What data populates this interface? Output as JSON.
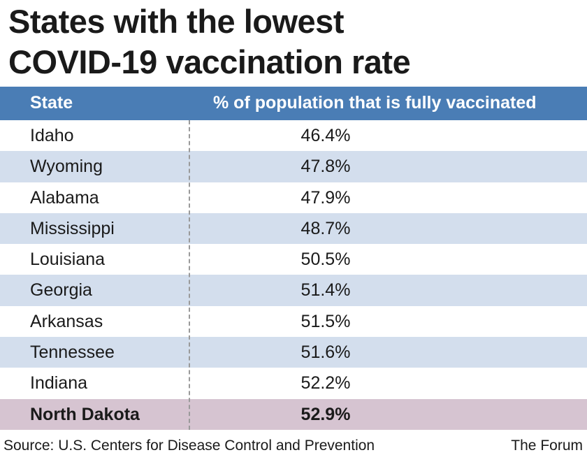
{
  "title_lines": [
    "States with the lowest",
    "COVID-19 vaccination rate"
  ],
  "table": {
    "headers": {
      "state": "State",
      "value": "% of population that is fully vaccinated"
    }
  },
  "footer": {
    "source": "Source: U.S. Centers for Disease Control and Prevention",
    "brand": "The Forum"
  },
  "colors": {
    "header_bg": "#4a7db5",
    "stripe": "#d3deed",
    "highlight": "#d6c4d1"
  },
  "chart_data": {
    "type": "table",
    "title": "States with the lowest COVID-19 vaccination rate",
    "columns": [
      "State",
      "% of population that is fully vaccinated"
    ],
    "rows": [
      {
        "state": "Idaho",
        "value": "46.4%",
        "highlight": false
      },
      {
        "state": "Wyoming",
        "value": "47.8%",
        "highlight": false
      },
      {
        "state": "Alabama",
        "value": "47.9%",
        "highlight": false
      },
      {
        "state": "Mississippi",
        "value": "48.7%",
        "highlight": false
      },
      {
        "state": "Louisiana",
        "value": "50.5%",
        "highlight": false
      },
      {
        "state": "Georgia",
        "value": "51.4%",
        "highlight": false
      },
      {
        "state": "Arkansas",
        "value": "51.5%",
        "highlight": false
      },
      {
        "state": "Tennessee",
        "value": "51.6%",
        "highlight": false
      },
      {
        "state": "Indiana",
        "value": "52.2%",
        "highlight": false
      },
      {
        "state": "North Dakota",
        "value": "52.9%",
        "highlight": true
      }
    ]
  }
}
